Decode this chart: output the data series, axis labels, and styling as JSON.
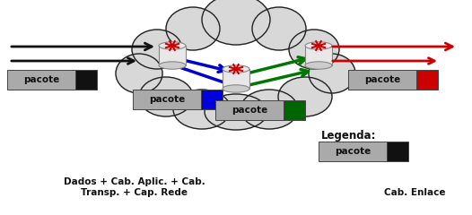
{
  "bg_color": "#ffffff",
  "cloud_color": "#d8d8d8",
  "cloud_edge": "#222222",
  "packet_gray": "#aaaaaa",
  "packet_black": "#111111",
  "packet_blue": "#0000dd",
  "packet_green": "#006600",
  "packet_red": "#cc0000",
  "arrow_black": "#111111",
  "arrow_blue": "#0000cc",
  "arrow_green": "#007700",
  "arrow_red": "#cc0000",
  "label_legenda": "Legenda:",
  "label_dados": "Dados + Cab. Aplic. + Cab.\nTransp. + Cap. Rede",
  "label_cabo": "Cab. Enlace",
  "font_size_main": 7.5,
  "font_size_legend": 8.5
}
